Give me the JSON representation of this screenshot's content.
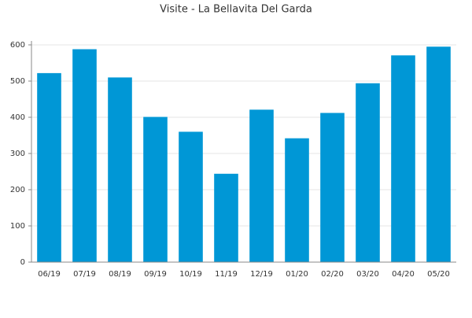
{
  "chart_data": {
    "type": "bar",
    "title": "Visite - La Bellavita Del Garda",
    "categories": [
      "06/19",
      "07/19",
      "08/19",
      "09/19",
      "10/19",
      "11/19",
      "12/19",
      "01/20",
      "02/20",
      "03/20",
      "04/20",
      "05/20"
    ],
    "values": [
      522,
      588,
      510,
      401,
      360,
      244,
      421,
      342,
      412,
      494,
      571,
      595
    ],
    "color": "#0097d6",
    "ylim": [
      0,
      600
    ],
    "yticks": [
      0,
      100,
      200,
      300,
      400,
      500,
      600
    ],
    "grid": true
  }
}
